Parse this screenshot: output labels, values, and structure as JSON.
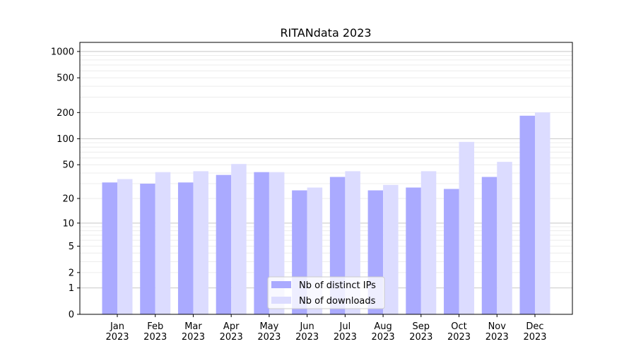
{
  "chart_data": {
    "type": "bar",
    "title": "RITANdata 2023",
    "xlabel": "",
    "ylabel": "",
    "yscale": "log(1+x)",
    "ylim": [
      0,
      1270
    ],
    "grid": true,
    "legend_position": "lower-center",
    "categories": [
      "Jan\n2023",
      "Feb\n2023",
      "Mar\n2023",
      "Apr\n2023",
      "May\n2023",
      "Jun\n2023",
      "Jul\n2023",
      "Aug\n2023",
      "Sep\n2023",
      "Oct\n2023",
      "Nov\n2023",
      "Dec\n2023"
    ],
    "yticks": [
      0,
      1,
      2,
      5,
      10,
      20,
      50,
      100,
      200,
      500,
      1000
    ],
    "series": [
      {
        "name": "Nb of distinct IPs",
        "color": "#aaaaff",
        "values": [
          31,
          30,
          31,
          38,
          41,
          25,
          36,
          25,
          27,
          26,
          36,
          184
        ]
      },
      {
        "name": "Nb of downloads",
        "color": "#dcdcff",
        "values": [
          34,
          41,
          42,
          51,
          41,
          27,
          42,
          29,
          42,
          92,
          54,
          201
        ]
      }
    ]
  }
}
